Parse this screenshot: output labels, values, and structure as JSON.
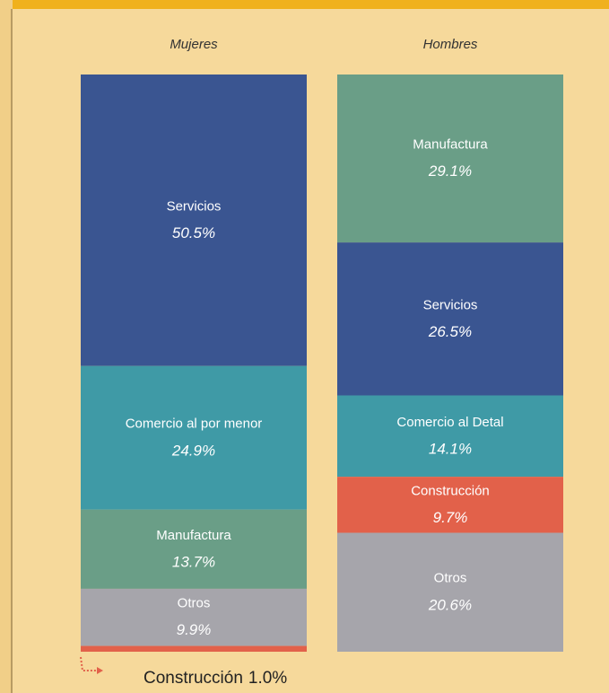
{
  "chart_data": {
    "type": "stacked_bar",
    "categories": [
      "Mujeres",
      "Hombres"
    ],
    "bars": [
      {
        "names": [
          "Servicios",
          "Comercio al por menor",
          "Manufactura",
          "Otros",
          "Construcción"
        ],
        "values": [
          50.5,
          24.9,
          13.7,
          9.9,
          1.0
        ],
        "value_labels": [
          "50.5%",
          "24.9%",
          "13.7%",
          "9.9%",
          "1.0%"
        ],
        "colors": [
          "#3a5591",
          "#3f9aa6",
          "#6a9e87",
          "#a6a5ab",
          "#e2614a"
        ]
      },
      {
        "names": [
          "Manufactura",
          "Servicios",
          "Comercio al Detal",
          "Construcción",
          "Otros"
        ],
        "values": [
          29.1,
          26.5,
          14.1,
          9.7,
          20.6
        ],
        "value_labels": [
          "29.1%",
          "26.5%",
          "14.1%",
          "9.7%",
          "20.6%"
        ],
        "colors": [
          "#6a9e87",
          "#3a5591",
          "#3f9aa6",
          "#e2614a",
          "#a6a5ab"
        ]
      }
    ]
  }
}
